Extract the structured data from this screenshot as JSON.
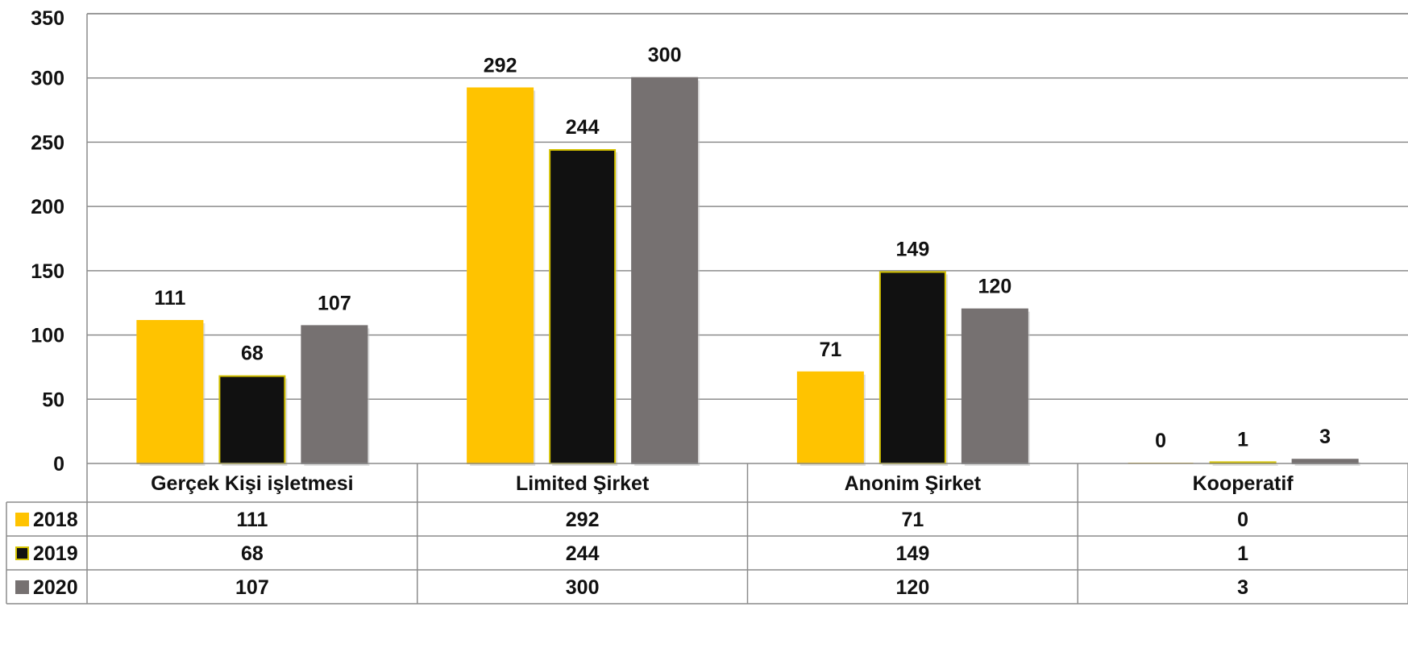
{
  "chart_data": {
    "type": "bar",
    "categories": [
      "Gerçek Kişi işletmesi",
      "Limited Şirket",
      "Anonim Şirket",
      "Kooperatif"
    ],
    "series": [
      {
        "name": "2018",
        "values": [
          111,
          292,
          71,
          0
        ],
        "color": "#FFC300",
        "border": "#FFC300"
      },
      {
        "name": "2019",
        "values": [
          68,
          244,
          149,
          1
        ],
        "color": "#111111",
        "border": "#D4C200"
      },
      {
        "name": "2020",
        "values": [
          107,
          300,
          120,
          3
        ],
        "color": "#767171",
        "border": "#767171"
      }
    ],
    "yticks": [
      "0",
      "50",
      "100",
      "150",
      "200",
      "250",
      "300",
      "350"
    ],
    "ylim": [
      0,
      350
    ],
    "grid": true,
    "data_table": true,
    "legend": "in data table"
  }
}
